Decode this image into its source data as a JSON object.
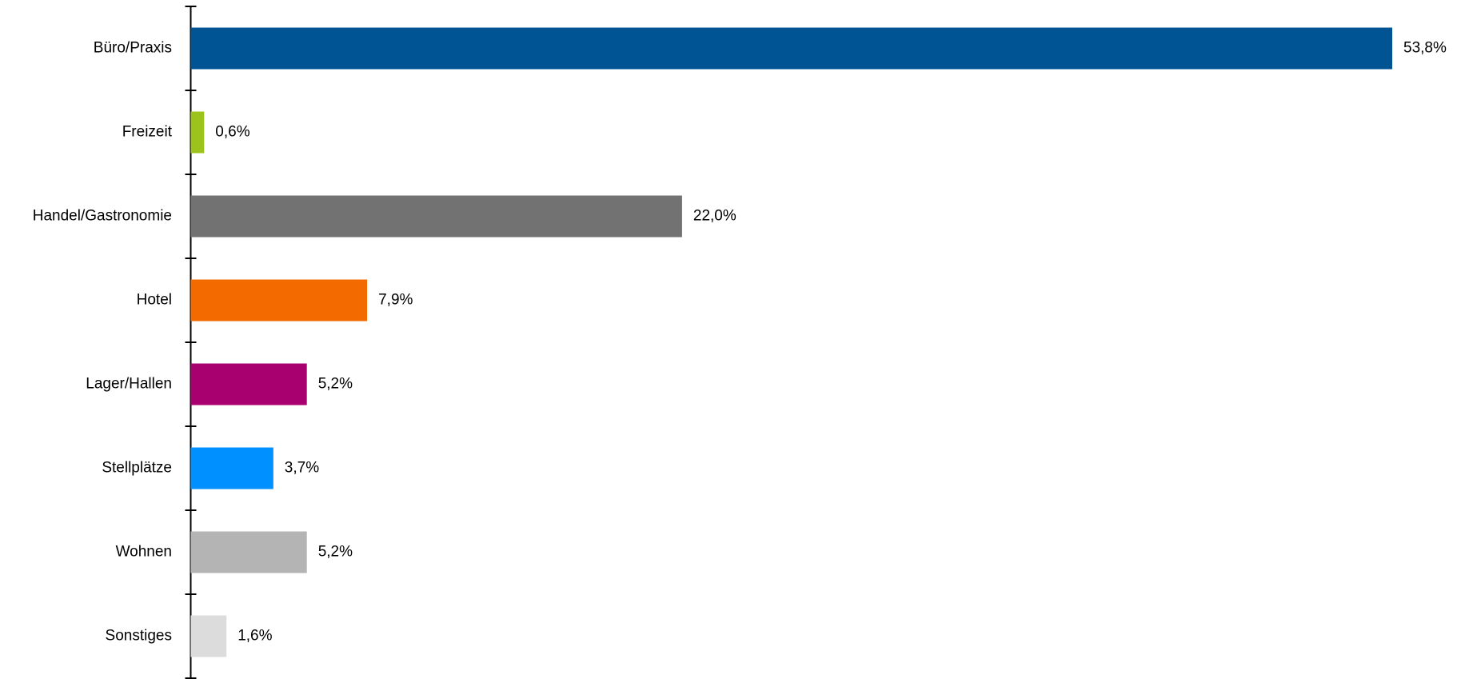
{
  "chart_data": {
    "type": "bar",
    "orientation": "horizontal",
    "title": "",
    "xlabel": "",
    "ylabel": "",
    "categories": [
      "Büro/Praxis",
      "Freizeit",
      "Handel/Gastronomie",
      "Hotel",
      "Lager/Hallen",
      "Stellplätze",
      "Wohnen",
      "Sonstiges"
    ],
    "values": [
      53.8,
      0.6,
      22.0,
      7.9,
      5.2,
      3.7,
      5.2,
      1.6
    ],
    "value_labels": [
      "53,8%",
      "0,6%",
      "22,0%",
      "7,9%",
      "5,2%",
      "3,7%",
      "5,2%",
      "1,6%"
    ],
    "colors": [
      "#005493",
      "#9BC31C",
      "#727272",
      "#F26A00",
      "#A8006F",
      "#0090FF",
      "#B4B4B4",
      "#DCDCDC"
    ],
    "unit": "%",
    "grid": false,
    "legend": "none",
    "xlim": [
      0,
      53.8
    ]
  }
}
